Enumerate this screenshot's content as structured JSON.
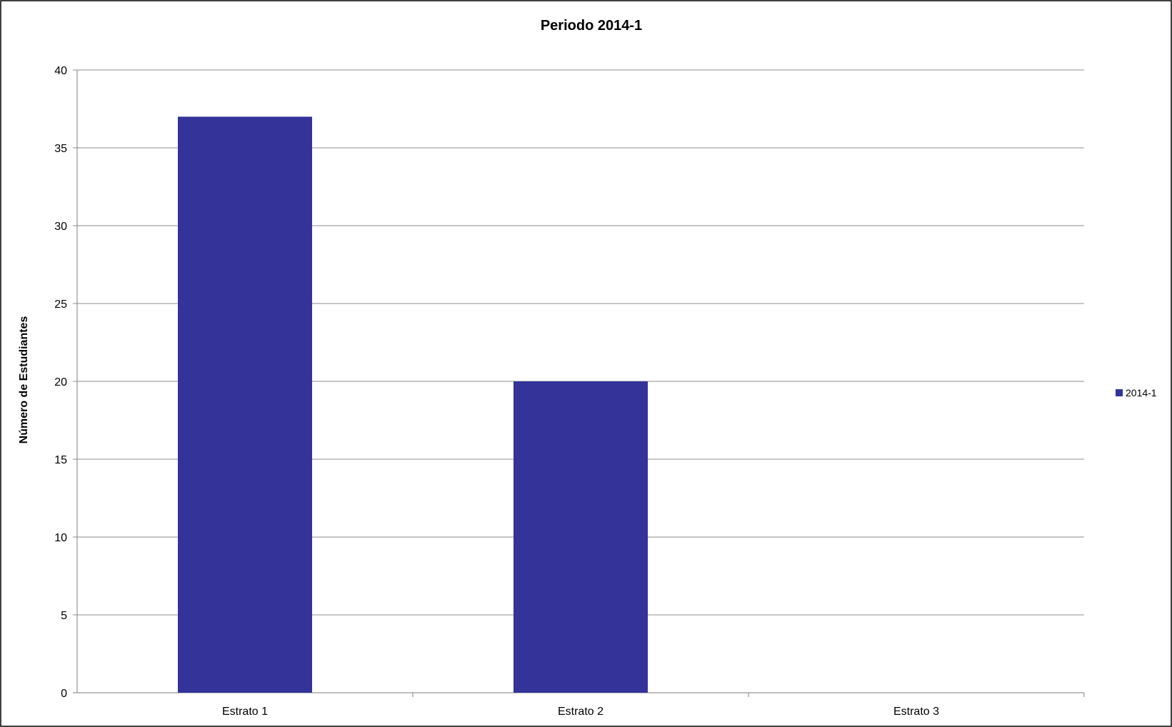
{
  "chart_data": {
    "type": "bar",
    "title": "Periodo 2014-1",
    "xlabel": "",
    "ylabel": "Número de Estudiantes",
    "categories": [
      "Estrato 1",
      "Estrato 2",
      "Estrato 3"
    ],
    "series": [
      {
        "name": "2014-1",
        "values": [
          37,
          20,
          0
        ],
        "color": "#333399"
      }
    ],
    "ylim": [
      0,
      40
    ],
    "yticks": [
      0,
      5,
      10,
      15,
      20,
      25,
      30,
      35,
      40
    ],
    "grid": true,
    "legend_position": "right"
  }
}
